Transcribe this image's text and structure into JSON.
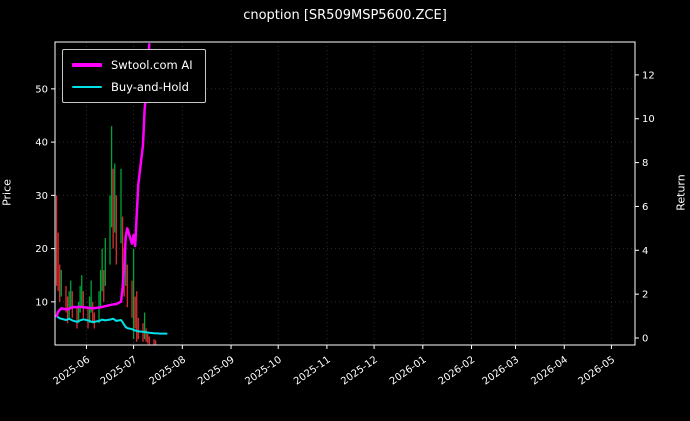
{
  "window": {
    "title": "cnoption [SR509MSP5600.ZCE]"
  },
  "chart_data": {
    "type": "mixed",
    "subtypes": [
      "candlestick",
      "line"
    ],
    "title": "cnoption [SR509MSP5600.ZCE]",
    "background": "#000000",
    "text_color": "#ffffff",
    "grid_color": "#2d2d2d",
    "frame_color": "#ffffff",
    "ylabel_left": "Price",
    "ylabel_right": "Return",
    "x_range": [
      "2025-05-12",
      "2026-05-16"
    ],
    "x_ticks": [
      {
        "d": "2025-06-01",
        "label": "2025-06"
      },
      {
        "d": "2025-07-01",
        "label": "2025-07"
      },
      {
        "d": "2025-08-01",
        "label": "2025-08"
      },
      {
        "d": "2025-09-01",
        "label": "2025-09"
      },
      {
        "d": "2025-10-01",
        "label": "2025-10"
      },
      {
        "d": "2025-11-01",
        "label": "2025-11"
      },
      {
        "d": "2025-12-01",
        "label": "2025-12"
      },
      {
        "d": "2026-01-01",
        "label": "2026-01"
      },
      {
        "d": "2026-02-01",
        "label": "2026-02"
      },
      {
        "d": "2026-03-01",
        "label": "2026-03"
      },
      {
        "d": "2026-04-01",
        "label": "2026-04"
      },
      {
        "d": "2026-05-01",
        "label": "2026-05"
      }
    ],
    "ylim_left": [
      1.9,
      58.8
    ],
    "yticks_left": [
      10,
      20,
      30,
      40,
      50
    ],
    "ylim_right": [
      -0.32,
      13.5
    ],
    "yticks_right": [
      0,
      2,
      4,
      6,
      8,
      10,
      12
    ],
    "legend": {
      "position": "upper-left",
      "items": [
        {
          "label": "Swtool.com AI",
          "color": "#ff00ff",
          "lw": 3.5
        },
        {
          "label": "Buy-and-Hold",
          "color": "#00e0e6",
          "lw": 2.5
        }
      ]
    },
    "colors": {
      "up": "#00a43a",
      "down": "#d63030"
    },
    "candles": [
      [
        "2025-05-13",
        13,
        30,
        "d"
      ],
      [
        "2025-05-14",
        12,
        23,
        "d"
      ],
      [
        "2025-05-15",
        10,
        17,
        "d"
      ],
      [
        "2025-05-16",
        11,
        16,
        "u"
      ],
      [
        "2025-05-19",
        8,
        13,
        "d"
      ],
      [
        "2025-05-20",
        6,
        11,
        "d"
      ],
      [
        "2025-05-21",
        7,
        12,
        "u"
      ],
      [
        "2025-05-22",
        9,
        14,
        "u"
      ],
      [
        "2025-05-23",
        7,
        12,
        "d"
      ],
      [
        "2025-05-26",
        5,
        9,
        "d"
      ],
      [
        "2025-05-27",
        6,
        10,
        "u"
      ],
      [
        "2025-05-28",
        8,
        13,
        "u"
      ],
      [
        "2025-05-29",
        9,
        15,
        "u"
      ],
      [
        "2025-05-30",
        7,
        12,
        "d"
      ],
      [
        "2025-06-02",
        5,
        9,
        "d"
      ],
      [
        "2025-06-03",
        6,
        11,
        "u"
      ],
      [
        "2025-06-04",
        8,
        14,
        "u"
      ],
      [
        "2025-06-05",
        6,
        10,
        "d"
      ],
      [
        "2025-06-06",
        5,
        8,
        "d"
      ],
      [
        "2025-06-09",
        6,
        12,
        "u"
      ],
      [
        "2025-06-10",
        9,
        16,
        "u"
      ],
      [
        "2025-06-11",
        12,
        20,
        "u"
      ],
      [
        "2025-06-12",
        10,
        16,
        "d"
      ],
      [
        "2025-06-13",
        13,
        22,
        "u"
      ],
      [
        "2025-06-16",
        17,
        30,
        "u"
      ],
      [
        "2025-06-17",
        24,
        43,
        "u"
      ],
      [
        "2025-06-18",
        20,
        35,
        "d"
      ],
      [
        "2025-06-19",
        23,
        36,
        "u"
      ],
      [
        "2025-06-20",
        17,
        30,
        "d"
      ],
      [
        "2025-06-23",
        21,
        35,
        "u"
      ],
      [
        "2025-06-24",
        14,
        26,
        "d"
      ],
      [
        "2025-06-25",
        11,
        20,
        "d"
      ],
      [
        "2025-06-26",
        13,
        22,
        "u"
      ],
      [
        "2025-06-27",
        9,
        17,
        "d"
      ],
      [
        "2025-06-30",
        7,
        14,
        "d"
      ],
      [
        "2025-07-01",
        3,
        20,
        "u"
      ],
      [
        "2025-07-02",
        5,
        11,
        "d"
      ],
      [
        "2025-07-03",
        2.5,
        12,
        "d"
      ],
      [
        "2025-07-04",
        3,
        7,
        "d"
      ],
      [
        "2025-07-07",
        2.5,
        6,
        "d"
      ],
      [
        "2025-07-08",
        3,
        8,
        "u"
      ],
      [
        "2025-07-09",
        2.5,
        5,
        "d"
      ],
      [
        "2025-07-10",
        2.2,
        4,
        "d"
      ],
      [
        "2025-07-11",
        2,
        3.5,
        "d"
      ],
      [
        "2025-07-14",
        2,
        3,
        "d"
      ],
      [
        "2025-07-15",
        2,
        2.8,
        "d"
      ]
    ],
    "series": [
      {
        "name": "Buy-and-Hold",
        "axis": "right",
        "color": "#00e0e6",
        "width": 2,
        "points": [
          [
            "2025-05-13",
            1.0
          ],
          [
            "2025-05-14",
            0.95
          ],
          [
            "2025-05-15",
            0.9
          ],
          [
            "2025-05-19",
            0.82
          ],
          [
            "2025-05-21",
            0.88
          ],
          [
            "2025-05-23",
            0.8
          ],
          [
            "2025-05-26",
            0.74
          ],
          [
            "2025-05-28",
            0.8
          ],
          [
            "2025-05-30",
            0.85
          ],
          [
            "2025-06-03",
            0.78
          ],
          [
            "2025-06-05",
            0.72
          ],
          [
            "2025-06-09",
            0.78
          ],
          [
            "2025-06-11",
            0.84
          ],
          [
            "2025-06-13",
            0.8
          ],
          [
            "2025-06-16",
            0.84
          ],
          [
            "2025-06-18",
            0.88
          ],
          [
            "2025-06-20",
            0.78
          ],
          [
            "2025-06-23",
            0.82
          ],
          [
            "2025-06-24",
            0.72
          ],
          [
            "2025-06-25",
            0.6
          ],
          [
            "2025-06-26",
            0.5
          ],
          [
            "2025-06-27",
            0.45
          ],
          [
            "2025-06-30",
            0.4
          ],
          [
            "2025-07-02",
            0.34
          ],
          [
            "2025-07-04",
            0.3
          ],
          [
            "2025-07-07",
            0.28
          ],
          [
            "2025-07-09",
            0.26
          ],
          [
            "2025-07-11",
            0.24
          ],
          [
            "2025-07-14",
            0.22
          ],
          [
            "2025-07-16",
            0.21
          ],
          [
            "2025-07-18",
            0.2
          ],
          [
            "2025-07-22",
            0.2
          ]
        ]
      },
      {
        "name": "Swtool.com AI",
        "axis": "right",
        "color": "#ff00ff",
        "width": 2.5,
        "points": [
          [
            "2025-05-13",
            1.0
          ],
          [
            "2025-05-14",
            1.2
          ],
          [
            "2025-05-16",
            1.35
          ],
          [
            "2025-05-20",
            1.3
          ],
          [
            "2025-05-23",
            1.4
          ],
          [
            "2025-05-28",
            1.42
          ],
          [
            "2025-06-02",
            1.38
          ],
          [
            "2025-06-05",
            1.35
          ],
          [
            "2025-06-10",
            1.4
          ],
          [
            "2025-06-13",
            1.45
          ],
          [
            "2025-06-17",
            1.52
          ],
          [
            "2025-06-20",
            1.55
          ],
          [
            "2025-06-23",
            1.65
          ],
          [
            "2025-06-24",
            2.3
          ],
          [
            "2025-06-25",
            3.2
          ],
          [
            "2025-06-26",
            4.6
          ],
          [
            "2025-06-27",
            5.0
          ],
          [
            "2025-06-30",
            4.3
          ],
          [
            "2025-07-01",
            4.7
          ],
          [
            "2025-07-02",
            4.2
          ],
          [
            "2025-07-03",
            5.6
          ],
          [
            "2025-07-04",
            7.0
          ],
          [
            "2025-07-07",
            8.8
          ],
          [
            "2025-07-08",
            10.4
          ],
          [
            "2025-07-09",
            11.2
          ],
          [
            "2025-07-10",
            12.5
          ],
          [
            "2025-07-11",
            13.4
          ]
        ]
      }
    ]
  }
}
